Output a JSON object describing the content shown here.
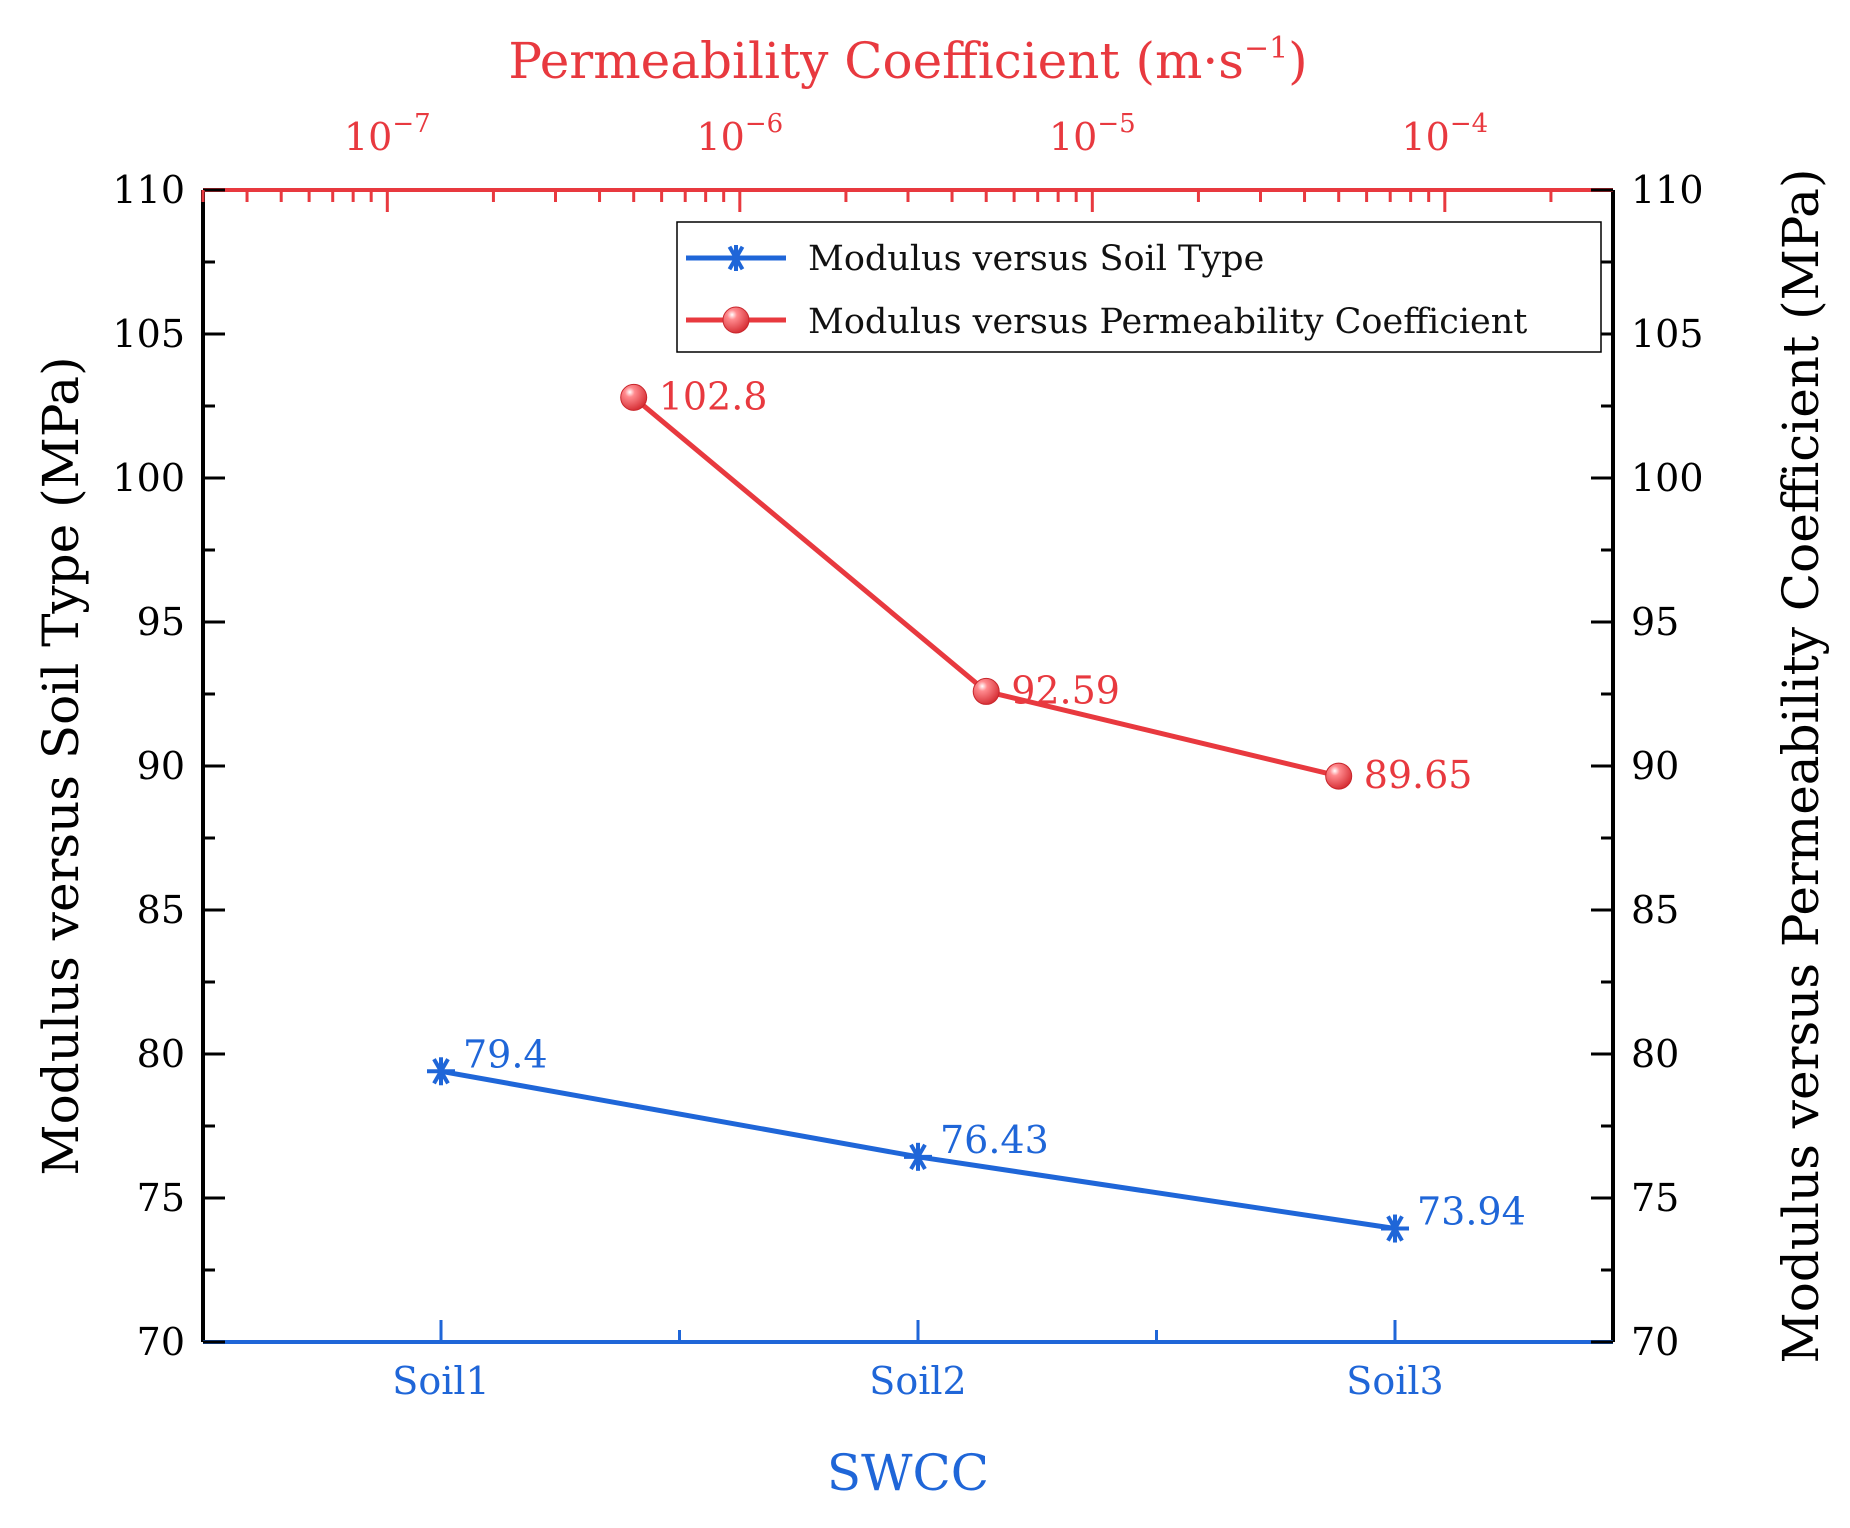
{
  "chart_data": {
    "type": "line",
    "x_axis_bottom": {
      "label": "SWCC",
      "categories": [
        "Soil1",
        "Soil2",
        "Soil3"
      ],
      "color": "#1f66d8"
    },
    "x_axis_top": {
      "label_prefix": "Permeability Coefficient (m·s",
      "label_exp": "−1",
      "label_suffix": ")",
      "scale": "log",
      "range": [
        3e-08,
        0.0003
      ],
      "ticks": [
        {
          "value": 1e-07,
          "base": "10",
          "exp": "−7"
        },
        {
          "value": 1e-06,
          "base": "10",
          "exp": "−6"
        },
        {
          "value": 1e-05,
          "base": "10",
          "exp": "−5"
        },
        {
          "value": 0.0001,
          "base": "10",
          "exp": "−4"
        }
      ],
      "color": "#e8393f"
    },
    "y_axis_left": {
      "label": "Modulus versus Soil Type (MPa)",
      "range": [
        70,
        110
      ],
      "ticks": [
        "70",
        "75",
        "80",
        "85",
        "90",
        "95",
        "100",
        "105",
        "110"
      ]
    },
    "y_axis_right": {
      "label": "Modulus versus Permeability Coefficient (MPa)",
      "range": [
        70,
        110
      ],
      "ticks": [
        "70",
        "75",
        "80",
        "85",
        "90",
        "95",
        "100",
        "105",
        "110"
      ]
    },
    "series": [
      {
        "name": "Modulus versus Soil Type",
        "axis": "bottom-left",
        "marker": "asterisk",
        "color": "#1f66d8",
        "x": [
          "Soil1",
          "Soil2",
          "Soil3"
        ],
        "y": [
          79.4,
          76.43,
          73.94
        ],
        "labels": [
          "79.4",
          "76.43",
          "73.94"
        ]
      },
      {
        "name": "Modulus versus Permeability Coefficient",
        "axis": "top-right",
        "marker": "sphere",
        "color": "#e8393f",
        "x": [
          5e-07,
          5e-06,
          5e-05
        ],
        "y": [
          102.8,
          92.59,
          89.65
        ],
        "labels": [
          "102.8",
          "92.59",
          "89.65"
        ]
      }
    ],
    "legend_position": "top-right",
    "grid": false
  }
}
